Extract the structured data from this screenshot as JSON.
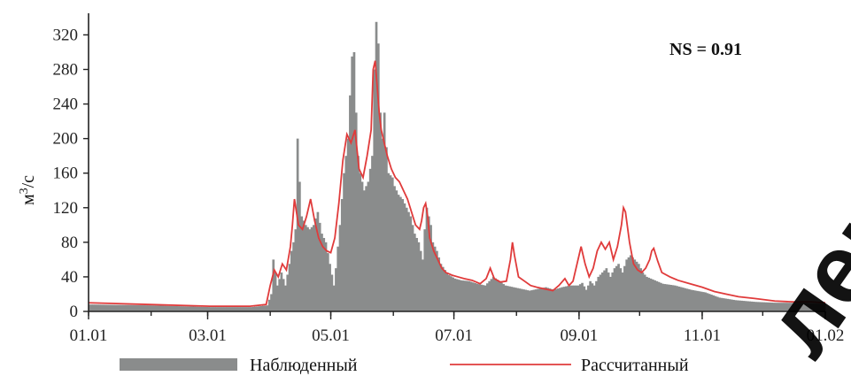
{
  "chart_data": {
    "type": "bar",
    "ylabel_base": "м",
    "ylabel_sup": "3",
    "ylabel_rest": "/с",
    "annotation": "NS = 0.91",
    "y_ticks": [
      0,
      40,
      80,
      120,
      160,
      200,
      240,
      280,
      320
    ],
    "ylim": [
      0,
      345
    ],
    "x_tick_labels": [
      "01.01",
      "03.01",
      "05.01",
      "07.01",
      "09.01",
      "11.01",
      "01.02"
    ],
    "x_tick_positions": [
      0,
      59,
      120,
      181,
      243,
      304,
      365
    ],
    "xlim": [
      0,
      365
    ],
    "grid": false,
    "legend_placement": "bottom",
    "series": [
      {
        "name": "Наблюденный",
        "kind": "bar",
        "color": "#8a8c8c",
        "points": [
          [
            0,
            8
          ],
          [
            30,
            7
          ],
          [
            60,
            5
          ],
          [
            80,
            5
          ],
          [
            88,
            7
          ],
          [
            90,
            20
          ],
          [
            91,
            60
          ],
          [
            93,
            30
          ],
          [
            95,
            45
          ],
          [
            97,
            30
          ],
          [
            99,
            55
          ],
          [
            100,
            70
          ],
          [
            101,
            80
          ],
          [
            102,
            95
          ],
          [
            103,
            200
          ],
          [
            104,
            150
          ],
          [
            105,
            110
          ],
          [
            107,
            100
          ],
          [
            109,
            95
          ],
          [
            111,
            100
          ],
          [
            113,
            115
          ],
          [
            115,
            90
          ],
          [
            117,
            80
          ],
          [
            119,
            55
          ],
          [
            121,
            30
          ],
          [
            122,
            50
          ],
          [
            124,
            100
          ],
          [
            126,
            160
          ],
          [
            128,
            200
          ],
          [
            129,
            250
          ],
          [
            130,
            295
          ],
          [
            131,
            300
          ],
          [
            132,
            230
          ],
          [
            133,
            180
          ],
          [
            134,
            160
          ],
          [
            136,
            140
          ],
          [
            138,
            150
          ],
          [
            140,
            180
          ],
          [
            141,
            280
          ],
          [
            142,
            335
          ],
          [
            143,
            310
          ],
          [
            144,
            230
          ],
          [
            145,
            200
          ],
          [
            146,
            230
          ],
          [
            147,
            190
          ],
          [
            148,
            160
          ],
          [
            150,
            155
          ],
          [
            151,
            145
          ],
          [
            153,
            135
          ],
          [
            155,
            130
          ],
          [
            157,
            120
          ],
          [
            159,
            110
          ],
          [
            161,
            90
          ],
          [
            163,
            80
          ],
          [
            165,
            60
          ],
          [
            166,
            95
          ],
          [
            167,
            120
          ],
          [
            168,
            110
          ],
          [
            169,
            100
          ],
          [
            170,
            80
          ],
          [
            172,
            70
          ],
          [
            174,
            55
          ],
          [
            176,
            48
          ],
          [
            178,
            42
          ],
          [
            181,
            38
          ],
          [
            184,
            36
          ],
          [
            188,
            35
          ],
          [
            192,
            32
          ],
          [
            196,
            30
          ],
          [
            200,
            40
          ],
          [
            203,
            35
          ],
          [
            206,
            30
          ],
          [
            210,
            28
          ],
          [
            214,
            26
          ],
          [
            218,
            24
          ],
          [
            222,
            26
          ],
          [
            226,
            28
          ],
          [
            230,
            25
          ],
          [
            234,
            28
          ],
          [
            238,
            30
          ],
          [
            242,
            30
          ],
          [
            244,
            33
          ],
          [
            246,
            25
          ],
          [
            248,
            35
          ],
          [
            250,
            30
          ],
          [
            252,
            40
          ],
          [
            254,
            45
          ],
          [
            256,
            50
          ],
          [
            258,
            40
          ],
          [
            260,
            50
          ],
          [
            262,
            55
          ],
          [
            264,
            45
          ],
          [
            266,
            60
          ],
          [
            268,
            65
          ],
          [
            270,
            60
          ],
          [
            272,
            55
          ],
          [
            274,
            45
          ],
          [
            276,
            40
          ],
          [
            278,
            38
          ],
          [
            280,
            36
          ],
          [
            284,
            32
          ],
          [
            290,
            30
          ],
          [
            298,
            25
          ],
          [
            305,
            22
          ],
          [
            312,
            16
          ],
          [
            320,
            13
          ],
          [
            330,
            11
          ],
          [
            340,
            10
          ],
          [
            350,
            10
          ],
          [
            358,
            9
          ],
          [
            365,
            9
          ]
        ]
      },
      {
        "name": "Рассчитанный",
        "kind": "line",
        "color": "#e03b3b",
        "points": [
          [
            0,
            10
          ],
          [
            30,
            8
          ],
          [
            60,
            6
          ],
          [
            80,
            6
          ],
          [
            88,
            8
          ],
          [
            90,
            30
          ],
          [
            92,
            48
          ],
          [
            94,
            40
          ],
          [
            96,
            55
          ],
          [
            98,
            48
          ],
          [
            100,
            75
          ],
          [
            101,
            100
          ],
          [
            102,
            130
          ],
          [
            103,
            115
          ],
          [
            104,
            100
          ],
          [
            106,
            95
          ],
          [
            108,
            110
          ],
          [
            110,
            130
          ],
          [
            112,
            105
          ],
          [
            114,
            85
          ],
          [
            116,
            75
          ],
          [
            118,
            70
          ],
          [
            120,
            68
          ],
          [
            122,
            85
          ],
          [
            124,
            125
          ],
          [
            126,
            175
          ],
          [
            128,
            205
          ],
          [
            129,
            200
          ],
          [
            130,
            195
          ],
          [
            132,
            210
          ],
          [
            134,
            165
          ],
          [
            136,
            155
          ],
          [
            138,
            180
          ],
          [
            140,
            210
          ],
          [
            141,
            280
          ],
          [
            142,
            290
          ],
          [
            143,
            260
          ],
          [
            144,
            230
          ],
          [
            145,
            210
          ],
          [
            146,
            200
          ],
          [
            148,
            180
          ],
          [
            150,
            165
          ],
          [
            152,
            155
          ],
          [
            154,
            150
          ],
          [
            156,
            140
          ],
          [
            158,
            130
          ],
          [
            160,
            115
          ],
          [
            162,
            100
          ],
          [
            164,
            95
          ],
          [
            165,
            105
          ],
          [
            166,
            120
          ],
          [
            167,
            125
          ],
          [
            168,
            110
          ],
          [
            169,
            85
          ],
          [
            171,
            70
          ],
          [
            173,
            60
          ],
          [
            175,
            50
          ],
          [
            177,
            45
          ],
          [
            180,
            42
          ],
          [
            183,
            40
          ],
          [
            186,
            38
          ],
          [
            190,
            36
          ],
          [
            194,
            32
          ],
          [
            197,
            38
          ],
          [
            199,
            50
          ],
          [
            201,
            38
          ],
          [
            204,
            34
          ],
          [
            207,
            35
          ],
          [
            209,
            60
          ],
          [
            210,
            80
          ],
          [
            211,
            65
          ],
          [
            213,
            40
          ],
          [
            216,
            35
          ],
          [
            219,
            30
          ],
          [
            222,
            28
          ],
          [
            226,
            26
          ],
          [
            230,
            24
          ],
          [
            233,
            30
          ],
          [
            236,
            38
          ],
          [
            238,
            30
          ],
          [
            240,
            35
          ],
          [
            242,
            55
          ],
          [
            244,
            75
          ],
          [
            246,
            55
          ],
          [
            248,
            40
          ],
          [
            250,
            50
          ],
          [
            252,
            70
          ],
          [
            254,
            80
          ],
          [
            256,
            72
          ],
          [
            258,
            80
          ],
          [
            260,
            60
          ],
          [
            262,
            75
          ],
          [
            264,
            100
          ],
          [
            265,
            120
          ],
          [
            266,
            115
          ],
          [
            268,
            80
          ],
          [
            270,
            55
          ],
          [
            272,
            48
          ],
          [
            274,
            45
          ],
          [
            276,
            50
          ],
          [
            278,
            60
          ],
          [
            279,
            70
          ],
          [
            280,
            73
          ],
          [
            282,
            58
          ],
          [
            284,
            45
          ],
          [
            288,
            40
          ],
          [
            292,
            36
          ],
          [
            298,
            32
          ],
          [
            304,
            28
          ],
          [
            310,
            23
          ],
          [
            316,
            20
          ],
          [
            322,
            17
          ],
          [
            330,
            15
          ],
          [
            340,
            12
          ],
          [
            350,
            11
          ],
          [
            358,
            11
          ],
          [
            365,
            10
          ]
        ]
      }
    ]
  }
}
